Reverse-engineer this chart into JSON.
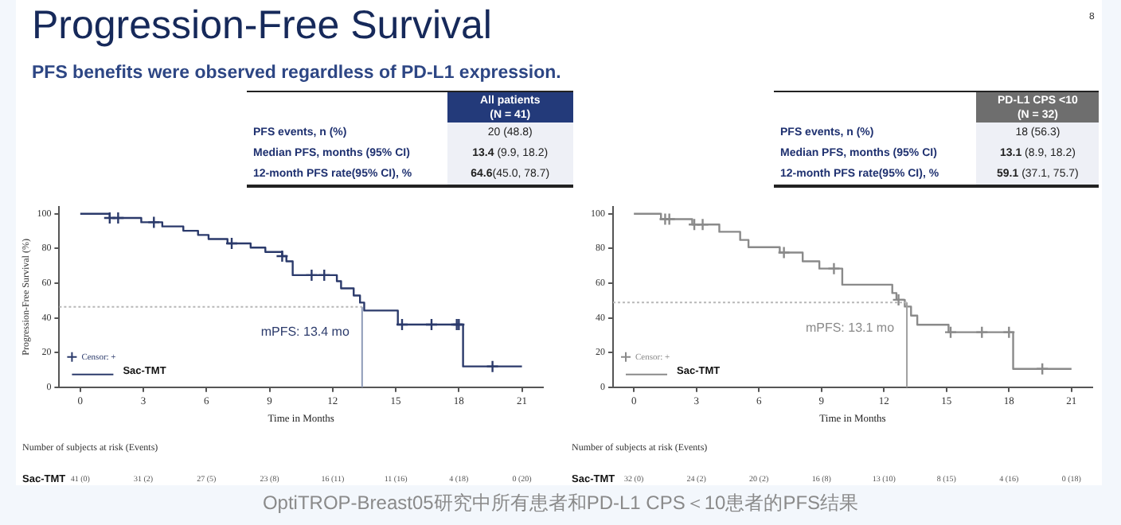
{
  "chart_data": [
    {
      "type": "other",
      "title": "Progression-Free Survival",
      "subtitle": "PFS benefits were observed regardless of PD-L1 expression.",
      "categories": [
        "All patients\n(N = 41)"
      ],
      "color": "#233a7a",
      "y_categories": [
        "PFS events, n (%)",
        "Median PFS, months (95% CI)",
        "12-month PFS rate(95% CI), %"
      ],
      "cell_labels": [
        [
          "20 (48.8)"
        ],
        [
          "13.4 (9.9, 18.2)"
        ],
        [
          "64.6(45.0, 78.7)"
        ]
      ],
      "annotations": [
        "8"
      ]
    },
    {
      "type": "step",
      "xlabel": "Time in Months",
      "ylabel": "Progression-Free Survival (%)",
      "xlim": [
        -1,
        22
      ],
      "ylim": [
        0,
        104
      ],
      "xticks": [
        0,
        3,
        6,
        9,
        12,
        15,
        18,
        21
      ],
      "yticks": [
        0,
        20,
        40,
        60,
        80,
        100
      ],
      "grid": false,
      "legend": "bottom left",
      "series": [
        {
          "name": "Sac-TMT",
          "type": "step",
          "color": "#2b3a6b",
          "x": [
            0,
            1.4,
            2.9,
            3.9,
            4.9,
            5.6,
            6.1,
            7.0,
            8.1,
            8.8,
            9.6,
            9.8,
            10.1,
            12.2,
            12.4,
            13.0,
            13.3,
            13.5,
            15.1,
            18.2,
            21
          ],
          "values": [
            100,
            97.6,
            95.1,
            92.7,
            90.2,
            87.8,
            85.4,
            82.9,
            80.5,
            78.0,
            75.6,
            72.6,
            64.6,
            61.1,
            57.0,
            52.9,
            48.8,
            44.2,
            36.1,
            12.0,
            12.0
          ]
        },
        {
          "name": "Censor: +",
          "type": "scatter",
          "marker": "cross",
          "color": "#2b3a6b",
          "x": [
            1.4,
            1.8,
            3.5,
            7.2,
            9.6,
            11.0,
            11.6,
            15.3,
            16.7,
            17.9,
            18.0,
            19.6
          ],
          "values": [
            97.6,
            97.6,
            95.1,
            82.9,
            75.6,
            64.6,
            64.6,
            36.1,
            36.1,
            36.1,
            36.1,
            12.0
          ]
        }
      ],
      "ref_lines": [
        {
          "axis": "x",
          "value": 13.4,
          "label": "mPFS: 13.4 mo",
          "color": "#8e9bb8"
        },
        {
          "axis": "y",
          "value": 46.3,
          "line_style": "dotted",
          "color": "#b8b8b8"
        }
      ],
      "annotations": [
        "Number of subjects at risk (Events)",
        "Sac-TMT",
        "41 (0)",
        "31 (2)",
        "27 (5)",
        "23 (8)",
        "16 (11)",
        "11 (16)",
        "4 (18)",
        "0 (20)"
      ]
    },
    {
      "type": "other",
      "categories": [
        "PD-L1 CPS <10\n(N = 32)"
      ],
      "color": "#6e6e6e",
      "y_categories": [
        "PFS events, n (%)",
        "Median PFS, months (95% CI)",
        "12-month PFS rate(95% CI),  %"
      ],
      "cell_labels": [
        [
          "18 (56.3)"
        ],
        [
          "13.1 (8.9, 18.2)"
        ],
        [
          "59.1 (37.1, 75.7)"
        ]
      ]
    },
    {
      "type": "step",
      "xlabel": "Time in Months",
      "xlim": [
        -1,
        22
      ],
      "ylim": [
        0,
        104
      ],
      "xticks": [
        0,
        3,
        6,
        9,
        12,
        15,
        18,
        21
      ],
      "yticks": [
        0,
        20,
        40,
        60,
        80,
        100
      ],
      "grid": false,
      "legend": "bottom left",
      "series": [
        {
          "name": "Sac-TMT",
          "type": "step",
          "color": "#8a8a8a",
          "x": [
            0,
            1.3,
            2.8,
            4.1,
            5.1,
            5.5,
            7.0,
            8.1,
            8.9,
            10.0,
            12.4,
            12.6,
            13.0,
            13.3,
            13.6,
            15.1,
            18.2,
            21
          ],
          "values": [
            100,
            96.9,
            93.8,
            89.6,
            84.9,
            80.7,
            77.6,
            72.6,
            68.4,
            59.1,
            54.3,
            50.4,
            46.5,
            41.3,
            36.0,
            31.7,
            10.6,
            10.6
          ]
        },
        {
          "name": "Censor: +",
          "type": "scatter",
          "marker": "cross",
          "color": "#8a8a8a",
          "x": [
            1.5,
            1.7,
            2.9,
            3.3,
            7.2,
            9.6,
            12.7,
            15.2,
            16.7,
            18.0,
            19.6
          ],
          "values": [
            96.9,
            96.9,
            93.8,
            93.8,
            77.6,
            68.4,
            50.4,
            31.7,
            31.7,
            31.7,
            10.6
          ]
        }
      ],
      "ref_lines": [
        {
          "axis": "x",
          "value": 13.1,
          "label": "mPFS: 13.1 mo",
          "color": "#a0a0a0"
        },
        {
          "axis": "y",
          "value": 48.9,
          "line_style": "dotted",
          "color": "#b8b8b8"
        }
      ],
      "annotations": [
        "Number of subjects at risk (Events)",
        "Sac-TMT",
        "32 (0)",
        "24 (2)",
        "20 (2)",
        "16 (8)",
        "13 (10)",
        "8 (15)",
        "4 (16)",
        "0 (18)",
        "OptiTROP-Breast05研究中所有患者和PD-L1 CPS＜10患者的PFS结果"
      ]
    }
  ]
}
